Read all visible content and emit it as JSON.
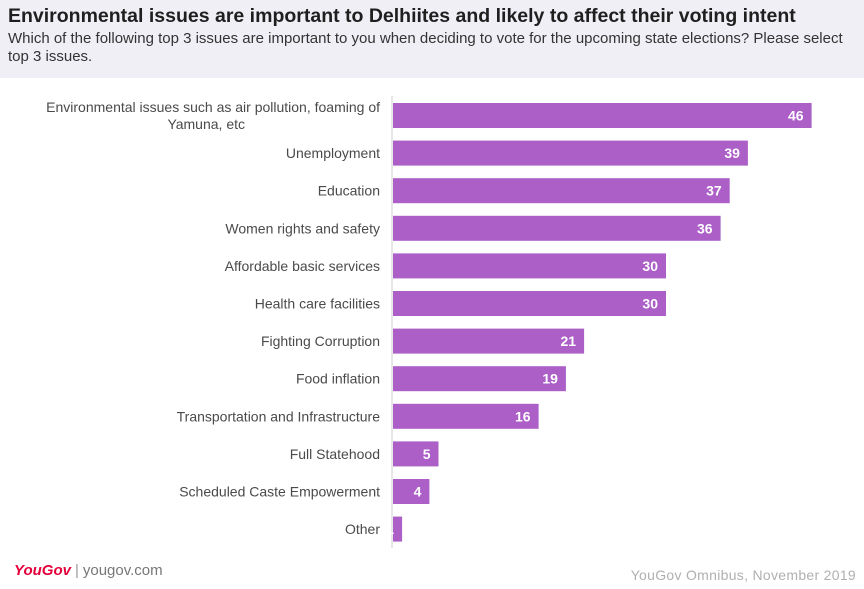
{
  "chart_data": {
    "type": "bar",
    "orientation": "horizontal",
    "title": "Environmental issues are important to Delhiites and likely to affect their voting intent",
    "subtitle": "Which of the following top 3 issues are important to you when deciding to vote for the upcoming state elections? Please select top 3 issues.",
    "categories": [
      [
        "Environmental issues such as air pollution, foaming of",
        "Yamuna, etc"
      ],
      [
        "Unemployment"
      ],
      [
        "Education"
      ],
      [
        "Women rights and safety"
      ],
      [
        "Affordable basic services"
      ],
      [
        "Health care facilities"
      ],
      [
        "Fighting Corruption"
      ],
      [
        "Food inflation"
      ],
      [
        "Transportation and Infrastructure"
      ],
      [
        "Full Statehood"
      ],
      [
        "Scheduled Caste Empowerment"
      ],
      [
        "Other"
      ]
    ],
    "values": [
      46,
      39,
      37,
      36,
      30,
      30,
      21,
      19,
      16,
      5,
      4,
      1
    ],
    "xlim": [
      0,
      50
    ],
    "bar_color": "#ab5fc7",
    "label_color": "#ffffff"
  },
  "footer": {
    "brand_you": "You",
    "brand_gov": "Gov",
    "divider": "|",
    "site": "yougov.com",
    "source": "YouGov Omnibus, November 2019"
  }
}
